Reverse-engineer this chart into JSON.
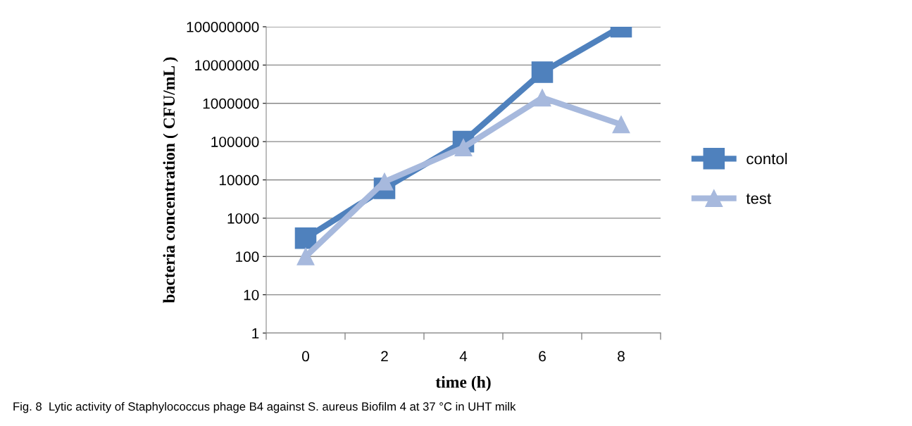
{
  "chart_data": {
    "type": "line",
    "xlabel": "time (h)",
    "ylabel": "bacteria concentration ( CFU/mL )",
    "categories": [
      "0",
      "2",
      "4",
      "6",
      "8"
    ],
    "series": [
      {
        "name": "contol",
        "color": "#4f81bd",
        "marker": "square",
        "values": [
          300,
          6000,
          100000,
          6500000,
          100000000
        ]
      },
      {
        "name": "test",
        "color": "#a7b9dd",
        "marker": "triangle",
        "values": [
          100,
          9000,
          70000,
          1400000,
          280000
        ]
      }
    ],
    "log": true,
    "ylim": [
      1,
      100000000
    ],
    "yticks": [
      1,
      10,
      100,
      1000,
      10000,
      100000,
      1000000,
      10000000,
      100000000
    ],
    "grid": "y",
    "legend": "right",
    "line_style": "solid",
    "annotations": [
      "Fig. 8  Lytic activity of Staphylococcus phage B4 against S. aureus Biofilm 4 at 37 °C in UHT milk"
    ]
  }
}
